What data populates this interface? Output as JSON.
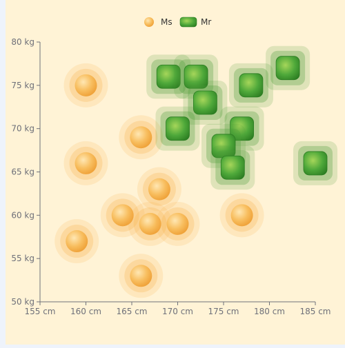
{
  "chart_data": {
    "type": "scatter",
    "title": "",
    "xlabel": "",
    "ylabel": "",
    "x_unit": " cm",
    "y_unit": " kg",
    "xlim": [
      155,
      185
    ],
    "ylim": [
      50,
      80
    ],
    "x_ticks": [
      155,
      160,
      165,
      170,
      175,
      180,
      185
    ],
    "y_ticks": [
      50,
      55,
      60,
      65,
      70,
      75,
      80
    ],
    "x_tick_labels": [
      "155 cm",
      "160 cm",
      "165 cm",
      "170 cm",
      "175 cm",
      "180 cm",
      "185 cm"
    ],
    "y_tick_labels": [
      "50 kg",
      "55 kg",
      "60 kg",
      "65 kg",
      "70 kg",
      "75 kg",
      "80 kg"
    ],
    "grid": false,
    "legend_position": "top-center",
    "series": [
      {
        "name": "Ms",
        "symbol": "circle",
        "color": "#f7b24e",
        "points": [
          [
            160,
            75
          ],
          [
            166,
            69
          ],
          [
            160,
            66
          ],
          [
            168,
            63
          ],
          [
            164,
            60
          ],
          [
            167,
            59
          ],
          [
            170,
            59
          ],
          [
            177,
            60
          ],
          [
            159,
            57
          ],
          [
            166,
            53
          ]
        ]
      },
      {
        "name": "Mr",
        "symbol": "rounded-square",
        "color": "#3f9a2a",
        "points": [
          [
            169,
            76
          ],
          [
            172,
            76
          ],
          [
            178,
            75
          ],
          [
            182,
            77
          ],
          [
            173,
            73
          ],
          [
            170,
            70
          ],
          [
            177,
            70
          ],
          [
            175,
            68
          ],
          [
            176,
            65.5
          ],
          [
            185,
            66
          ]
        ]
      }
    ]
  }
}
